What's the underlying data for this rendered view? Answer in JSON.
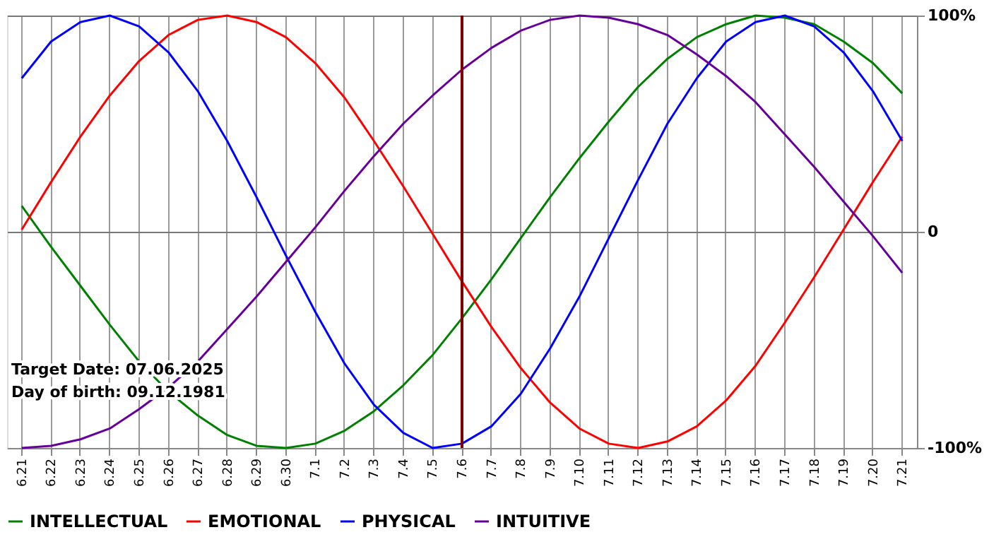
{
  "chart_data": {
    "type": "line",
    "categories": [
      "6.21",
      "6.22",
      "6.23",
      "6.24",
      "6.25",
      "6.26",
      "6.27",
      "6.28",
      "6.29",
      "6.30",
      "7.1",
      "7.2",
      "7.3",
      "7.4",
      "7.5",
      "7.6",
      "7.7",
      "7.8",
      "7.9",
      "7.10",
      "7.11",
      "7.12",
      "7.13",
      "7.14",
      "7.15",
      "7.16",
      "7.17",
      "7.18",
      "7.19",
      "7.20",
      "7.21"
    ],
    "series": [
      {
        "name": "INTELLECTUAL",
        "color": "#008000",
        "values": [
          12,
          -7,
          -25,
          -43,
          -60,
          -74,
          -85,
          -94,
          -99,
          -100,
          -98,
          -92,
          -83,
          -71,
          -57,
          -40,
          -22,
          -3,
          16,
          34,
          51,
          67,
          80,
          90,
          96,
          100,
          99,
          96,
          88,
          78,
          64
        ]
      },
      {
        "name": "EMOTIONAL",
        "color": "#ff0000",
        "values": [
          1,
          23,
          44,
          63,
          79,
          91,
          98,
          100,
          97,
          90,
          78,
          62,
          42,
          21,
          -1,
          -23,
          -44,
          -63,
          -79,
          -91,
          -98,
          -100,
          -97,
          -90,
          -78,
          -62,
          -42,
          -21,
          1,
          23,
          44
        ]
      },
      {
        "name": "PHYSICAL",
        "color": "#0000ff",
        "values": [
          71,
          88,
          97,
          100,
          95,
          83,
          65,
          42,
          16,
          -11,
          -37,
          -61,
          -80,
          -93,
          -100,
          -98,
          -90,
          -75,
          -54,
          -30,
          -3,
          24,
          50,
          71,
          88,
          97,
          100,
          95,
          83,
          65,
          42
        ]
      },
      {
        "name": "INTUITIVE",
        "color": "#660099",
        "values": [
          -100,
          -99,
          -96,
          -91,
          -82,
          -72,
          -60,
          -45,
          -30,
          -14,
          2,
          19,
          35,
          50,
          63,
          75,
          85,
          93,
          98,
          100,
          99,
          96,
          91,
          82,
          72,
          60,
          45,
          30,
          14,
          -2,
          -19
        ]
      }
    ],
    "ylim": [
      -100,
      100
    ],
    "yticks": [
      {
        "value": 100,
        "label": "100%"
      },
      0,
      {
        "value": -100,
        "label": "-100%"
      }
    ],
    "grid": true,
    "legend": "bottom",
    "line_style": "solid",
    "ref_lines": [
      {
        "axis": "x",
        "value": "7.6",
        "color": "#800000"
      }
    ],
    "annotations": [
      "Target Date: 07.06.2025",
      "Day of birth: 09.12.1981"
    ]
  }
}
